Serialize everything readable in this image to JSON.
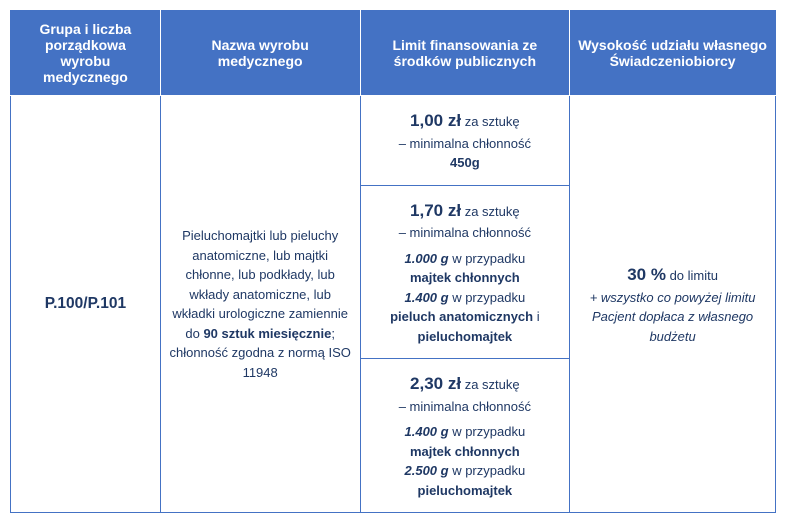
{
  "colors": {
    "header_bg": "#4472c4",
    "header_text": "#ffffff",
    "cell_text": "#1f3864",
    "border": "#4472c4"
  },
  "fonts": {
    "header_size": 14,
    "body_size": 13,
    "big_size": 17,
    "code_size": 15.5
  },
  "headers": {
    "h1": "Grupa i liczba porządkowa wyrobu medycznego",
    "h2": "Nazwa wyrobu medycznego",
    "h3": "Limit finansowania ze środków publicznych",
    "h4": "Wysokość udziału własnego Świadczeniobiorcy"
  },
  "body": {
    "code": "P.100/P.101",
    "product": {
      "l1": "Pieluchomajtki lub pieluchy anatomiczne, lub majtki chłonne, lub podkłady, lub wkłady anatomiczne, lub wkładki urologiczne zamiennie do",
      "l2_bold": "90 sztuk miesięcznie",
      "l2_tail": ";",
      "l3": "chłonność zgodna z normą ISO 11948"
    },
    "limits": {
      "r1": {
        "price": "1,00 zł",
        "tail": " za sztukę",
        "sub": "– minimalna chłonność",
        "val": "450g"
      },
      "r2": {
        "price": "1,70 zł",
        "tail": " za sztukę",
        "sub": "– minimalna chłonność",
        "v1_bold": "1.000 g",
        "v1_tail": " w przypadku",
        "v1_item": "majtek chłonnych",
        "v2_bold": "1.400 g",
        "v2_tail": " w przypadku",
        "v2_item1": "pieluch anatomicznych",
        "v2_and": " i",
        "v2_item2": "pieluchomajtek"
      },
      "r3": {
        "price": "2,30 zł",
        "tail": " za sztukę",
        "sub": "– minimalna chłonność",
        "v1_bold": "1.400 g",
        "v1_tail": " w przypadku",
        "v1_item": "majtek chłonnych",
        "v2_bold": "2.500 g",
        "v2_tail": " w przypadku",
        "v2_item": "pieluchomajtek"
      }
    },
    "share": {
      "pct": "30 %",
      "pct_tail": " do limitu",
      "note": "+ wszystko co powyżej limitu Pacjent dopłaca z własnego budżetu"
    }
  }
}
